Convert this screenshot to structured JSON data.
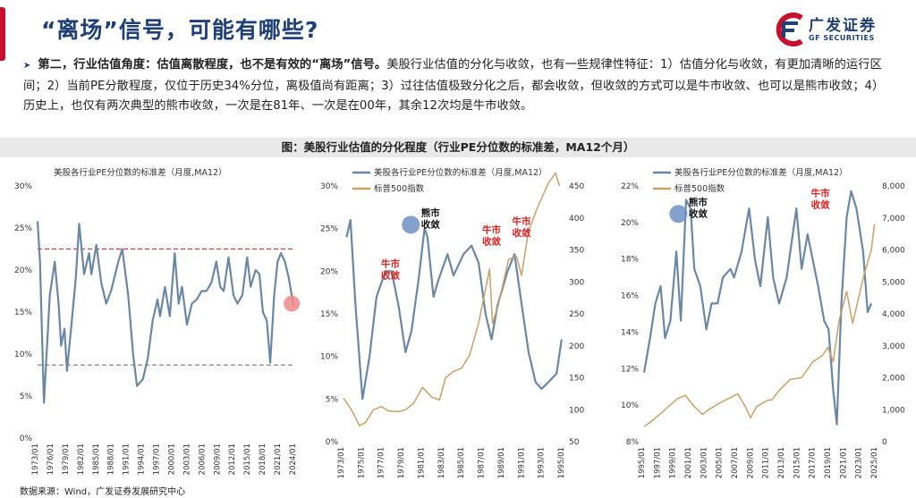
{
  "header": {
    "title": "“离场”信号，可能有哪些?",
    "logo_cn": "广发证券",
    "logo_en": "GF SECURITIES"
  },
  "paragraph": {
    "bold_lead": "第二，行业估值角度：估值离散程度，也不是有效的“离场”信号。",
    "body": "美股行业估值的分化与收敛，也有一些规律性特征：1）估值分化与收敛，有更加清晰的运行区间；2）当前PE分散程度，仅位于历史34%分位，离极值尚有距离；3）过往估值极致分化之后，都会收敛，但收敛的方式可以是牛市收敛、也可以是熊市收敛；4）历史上，也仅有两次典型的熊市收敛，一次是在81年、一次是在00年，其余12次均是牛市收敛。"
  },
  "figure_title": "图：美股行业估值的分化程度（行业PE分位数的标准差，MA12个月）",
  "source": "数据来源：Wind，广发证券发展研究中心",
  "colors": {
    "title": "#1f3f77",
    "series_std": "#6b87a6",
    "series_sp": "#c9a068",
    "ref_line_upper": "#d23a3a",
    "ref_line_lower": "#888888",
    "annotation": "#e02020",
    "highlight_blue": "#6f8fc4",
    "highlight_red": "#f08a8a"
  },
  "chart_data": [
    {
      "type": "line",
      "title": "",
      "legend": [
        "美股各行业PE分位数的标准差（月度,MA12）"
      ],
      "y_ticks": [
        "0%",
        "5%",
        "10%",
        "15%",
        "20%",
        "25%",
        "30%"
      ],
      "ylim": [
        0,
        30
      ],
      "x_ticks": [
        "1973/01",
        "1976/01",
        "1979/01",
        "1982/01",
        "1985/01",
        "1988/01",
        "1991/01",
        "1994/01",
        "1997/01",
        "2000/01",
        "2003/01",
        "2006/01",
        "2009/01",
        "2012/01",
        "2015/01",
        "2018/01",
        "2021/01",
        "2024/01"
      ],
      "xlim": [
        1973,
        2025.6
      ],
      "reference_lines": [
        {
          "value": 22.5,
          "style": "dashed-red"
        },
        {
          "value": 8.7,
          "style": "dashed-gray"
        }
      ],
      "highlight": {
        "x": 2024.9,
        "y": 16,
        "color": "red"
      },
      "series": [
        {
          "name": "美股各行业PE分位数的标准差（月度,MA12）",
          "axis": "left",
          "points": [
            [
              1973.0,
              25.8
            ],
            [
              1973.5,
              21
            ],
            [
              1974.3,
              4.2
            ],
            [
              1975.5,
              17
            ],
            [
              1976.5,
              21
            ],
            [
              1977.3,
              16
            ],
            [
              1977.8,
              11
            ],
            [
              1978.5,
              13
            ],
            [
              1979,
              8
            ],
            [
              1980,
              14
            ],
            [
              1980.8,
              19
            ],
            [
              1981.5,
              25.5
            ],
            [
              1982.5,
              19.5
            ],
            [
              1983.5,
              22
            ],
            [
              1984,
              19.5
            ],
            [
              1985,
              23
            ],
            [
              1986,
              18.5
            ],
            [
              1987,
              16
            ],
            [
              1988,
              17.5
            ],
            [
              1989.5,
              21
            ],
            [
              1990.3,
              22.5
            ],
            [
              1991.5,
              17
            ],
            [
              1992.5,
              10
            ],
            [
              1993.3,
              6.2
            ],
            [
              1994.5,
              7
            ],
            [
              1995.5,
              9.5
            ],
            [
              1996.5,
              14
            ],
            [
              1997.5,
              16.5
            ],
            [
              1998,
              14.5
            ],
            [
              1999,
              18
            ],
            [
              2000,
              14.5
            ],
            [
              2001,
              22
            ],
            [
              2001.8,
              16
            ],
            [
              2002.5,
              18
            ],
            [
              2003.5,
              13.5
            ],
            [
              2004.5,
              16
            ],
            [
              2005.5,
              16.5
            ],
            [
              2006.5,
              17.5
            ],
            [
              2007.5,
              17.5
            ],
            [
              2008.5,
              18.5
            ],
            [
              2009.5,
              21
            ],
            [
              2010.3,
              18
            ],
            [
              2011,
              17.5
            ],
            [
              2012,
              21.5
            ],
            [
              2013,
              17
            ],
            [
              2013.8,
              16
            ],
            [
              2014.8,
              17
            ],
            [
              2015.8,
              21.5
            ],
            [
              2016.5,
              18
            ],
            [
              2017.5,
              20
            ],
            [
              2018.3,
              19.5
            ],
            [
              2019,
              15
            ],
            [
              2019.8,
              14
            ],
            [
              2020.5,
              9
            ],
            [
              2021.3,
              17
            ],
            [
              2022,
              21
            ],
            [
              2022.7,
              22
            ],
            [
              2023.5,
              21
            ],
            [
              2024.3,
              19
            ],
            [
              2025.3,
              15.6
            ]
          ]
        }
      ]
    },
    {
      "type": "line",
      "title": "",
      "legend": [
        "美股各行业PE分位数的标准差（月度,MA12）",
        "标普500指数"
      ],
      "y_ticks": [
        "0%",
        "5%",
        "10%",
        "15%",
        "20%",
        "25%",
        "30%"
      ],
      "ylim": [
        0,
        30
      ],
      "y2_ticks": [
        "50",
        "100",
        "150",
        "200",
        "250",
        "300",
        "350",
        "400",
        "450"
      ],
      "y2lim": [
        50,
        450
      ],
      "x_ticks": [
        "1973/01",
        "1975/01",
        "1977/01",
        "1979/01",
        "1981/01",
        "1983/01",
        "1985/01",
        "1987/01",
        "1989/01",
        "1991/01",
        "1993/01",
        "1995/01"
      ],
      "xlim": [
        1973,
        1995
      ],
      "annotations": [
        {
          "text": "牛市\n收敛",
          "x": 1977.7,
          "y": 20.5,
          "color": "red"
        },
        {
          "text": "熊市\n收敛",
          "x": 1981.7,
          "y": 26.5,
          "color": "black",
          "circle": true
        },
        {
          "text": "牛市\n收敛",
          "x": 1987.8,
          "y": 24.5,
          "color": "red"
        },
        {
          "text": "牛市\n收敛",
          "x": 1990.8,
          "y": 25.5,
          "color": "red"
        }
      ],
      "series": [
        {
          "name": "美股各行业PE分位数的标准差（月度,MA12）",
          "axis": "left",
          "points": [
            [
              1973.3,
              24
            ],
            [
              1973.7,
              26
            ],
            [
              1974.2,
              16
            ],
            [
              1974.9,
              5
            ],
            [
              1975.6,
              10
            ],
            [
              1976.3,
              17
            ],
            [
              1977.2,
              20
            ],
            [
              1977.8,
              20
            ],
            [
              1978.5,
              16
            ],
            [
              1979.2,
              10.5
            ],
            [
              1979.8,
              13
            ],
            [
              1980.5,
              19
            ],
            [
              1981.1,
              25
            ],
            [
              1981.4,
              24
            ],
            [
              1982,
              17
            ],
            [
              1982.5,
              19
            ],
            [
              1983.4,
              22
            ],
            [
              1984,
              19.5
            ],
            [
              1985,
              22
            ],
            [
              1985.8,
              23
            ],
            [
              1986.5,
              21
            ],
            [
              1987.2,
              15
            ],
            [
              1987.8,
              12
            ],
            [
              1988.4,
              16
            ],
            [
              1989.4,
              20
            ],
            [
              1990.1,
              22
            ],
            [
              1990.7,
              17
            ],
            [
              1991.5,
              10.5
            ],
            [
              1992.2,
              7
            ],
            [
              1992.8,
              6.2
            ],
            [
              1993.5,
              7
            ],
            [
              1994.3,
              8
            ],
            [
              1994.8,
              12
            ]
          ]
        },
        {
          "name": "标普500指数",
          "axis": "right",
          "points": [
            [
              1973,
              118
            ],
            [
              1973.8,
              100
            ],
            [
              1974.6,
              75
            ],
            [
              1975.2,
              80
            ],
            [
              1976,
              100
            ],
            [
              1976.8,
              105
            ],
            [
              1977.5,
              98
            ],
            [
              1978.5,
              97
            ],
            [
              1979.2,
              100
            ],
            [
              1980,
              110
            ],
            [
              1980.9,
              135
            ],
            [
              1981.8,
              120
            ],
            [
              1982.6,
              115
            ],
            [
              1983.2,
              150
            ],
            [
              1984,
              160
            ],
            [
              1984.8,
              165
            ],
            [
              1985.6,
              185
            ],
            [
              1986.5,
              235
            ],
            [
              1987.6,
              320
            ],
            [
              1987.9,
              235
            ],
            [
              1988.5,
              265
            ],
            [
              1989.5,
              335
            ],
            [
              1990.3,
              340
            ],
            [
              1990.8,
              310
            ],
            [
              1991.5,
              380
            ],
            [
              1992.5,
              420
            ],
            [
              1993.5,
              455
            ],
            [
              1994.2,
              470
            ],
            [
              1994.6,
              450
            ]
          ]
        }
      ]
    },
    {
      "type": "line",
      "title": "",
      "legend": [
        "美股各行业PE分位数的标准差（月度,MA12）",
        "标普500指数"
      ],
      "y_ticks": [
        "8%",
        "10%",
        "12%",
        "14%",
        "16%",
        "18%",
        "20%",
        "22%"
      ],
      "ylim": [
        8,
        22.8
      ],
      "y2_ticks": [
        "0",
        "1,000",
        "2,000",
        "3,000",
        "4,000",
        "5,000",
        "6,000",
        "7,000",
        "8,000"
      ],
      "y2lim": [
        0,
        8000
      ],
      "x_ticks": [
        "1995/01",
        "1997/01",
        "1999/01",
        "2001/01",
        "2003/01",
        "2005/01",
        "2007/01",
        "2009/01",
        "2011/01",
        "2013/01",
        "2015/01",
        "2017/01",
        "2019/01",
        "2021/01",
        "2023/01",
        "2025/01"
      ],
      "xlim": [
        1995,
        2026
      ],
      "annotations": [
        {
          "text": "熊市\n收敛",
          "x": 2002.2,
          "y": 21.7,
          "color": "black",
          "circle": true
        },
        {
          "text": "牛市\n收敛",
          "x": 2018.5,
          "y": 22.2,
          "color": "red"
        }
      ],
      "series": [
        {
          "name": "美股各行业PE分位数的标准差（月度,MA12）",
          "axis": "left",
          "points": [
            [
              1995,
              12
            ],
            [
              1995.8,
              14
            ],
            [
              1996.5,
              16
            ],
            [
              1997.2,
              17
            ],
            [
              1997.8,
              14
            ],
            [
              1998.5,
              15
            ],
            [
              1999.3,
              19
            ],
            [
              1999.9,
              15
            ],
            [
              2000.6,
              22
            ],
            [
              2001.2,
              21.5
            ],
            [
              2001.7,
              18
            ],
            [
              2002.5,
              17
            ],
            [
              2003.3,
              14.5
            ],
            [
              2004,
              16
            ],
            [
              2004.8,
              16
            ],
            [
              2005.5,
              17.5
            ],
            [
              2006.5,
              18
            ],
            [
              2007,
              17.5
            ],
            [
              2008,
              19
            ],
            [
              2009,
              21.5
            ],
            [
              2009.8,
              18.5
            ],
            [
              2010.5,
              17
            ],
            [
              2011.5,
              21
            ],
            [
              2012.2,
              17.5
            ],
            [
              2013,
              16
            ],
            [
              2014,
              17.5
            ],
            [
              2015.3,
              21.5
            ],
            [
              2016,
              18
            ],
            [
              2016.8,
              20
            ],
            [
              2017.5,
              18.5
            ],
            [
              2018.2,
              17
            ],
            [
              2019,
              15
            ],
            [
              2019.6,
              14.5
            ],
            [
              2020.2,
              11
            ],
            [
              2020.7,
              9
            ],
            [
              2021.3,
              16
            ],
            [
              2022,
              21
            ],
            [
              2022.6,
              22.5
            ],
            [
              2023.3,
              21.5
            ],
            [
              2024.2,
              19
            ],
            [
              2024.8,
              15.5
            ],
            [
              2025.3,
              16
            ]
          ]
        },
        {
          "name": "标普500指数",
          "axis": "right",
          "points": [
            [
              1995,
              470
            ],
            [
              1996,
              640
            ],
            [
              1997,
              840
            ],
            [
              1998,
              1050
            ],
            [
              1999.5,
              1350
            ],
            [
              2000.5,
              1450
            ],
            [
              2001.5,
              1150
            ],
            [
              2002.8,
              850
            ],
            [
              2003.6,
              1000
            ],
            [
              2005,
              1200
            ],
            [
              2007.5,
              1500
            ],
            [
              2008.5,
              1100
            ],
            [
              2009.2,
              750
            ],
            [
              2010,
              1100
            ],
            [
              2011.5,
              1300
            ],
            [
              2012,
              1300
            ],
            [
              2013,
              1600
            ],
            [
              2014.5,
              1950
            ],
            [
              2016,
              2000
            ],
            [
              2017.5,
              2500
            ],
            [
              2018.8,
              2700
            ],
            [
              2019.5,
              2950
            ],
            [
              2020.2,
              2500
            ],
            [
              2021,
              3800
            ],
            [
              2022,
              4700
            ],
            [
              2022.8,
              3700
            ],
            [
              2023.5,
              4400
            ],
            [
              2024.3,
              5200
            ],
            [
              2025.3,
              6000
            ],
            [
              2025.7,
              6800
            ]
          ]
        }
      ]
    }
  ]
}
